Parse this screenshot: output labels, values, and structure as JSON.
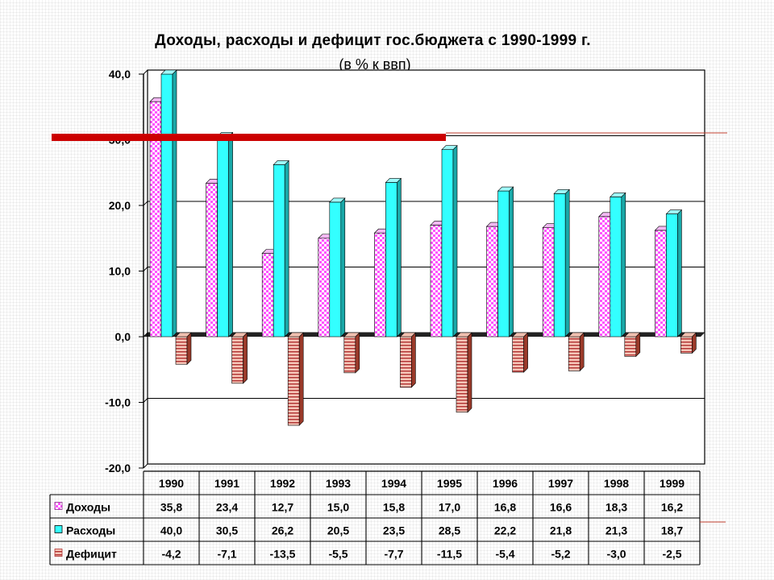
{
  "chart_data": {
    "type": "bar",
    "title": "Доходы, расходы и дефицит гос.бюджета с 1990-1999 г.",
    "subtitle": "(в % к ввп)",
    "categories": [
      "1990",
      "1991",
      "1992",
      "1993",
      "1994",
      "1995",
      "1996",
      "1997",
      "1998",
      "1999"
    ],
    "series": [
      {
        "name": "Доходы",
        "values": [
          35.8,
          23.4,
          12.7,
          15.0,
          15.8,
          17.0,
          16.8,
          16.6,
          18.3,
          16.2
        ],
        "labels": [
          "35,8",
          "23,4",
          "12,7",
          "15,0",
          "15,8",
          "17,0",
          "16,8",
          "16,6",
          "18,3",
          "16,2"
        ]
      },
      {
        "name": "Расходы",
        "values": [
          40.0,
          30.5,
          26.2,
          20.5,
          23.5,
          28.5,
          22.2,
          21.8,
          21.3,
          18.7
        ],
        "labels": [
          "40,0",
          "30,5",
          "26,2",
          "20,5",
          "23,5",
          "28,5",
          "22,2",
          "21,8",
          "21,3",
          "18,7"
        ]
      },
      {
        "name": "Дефицит",
        "values": [
          -4.2,
          -7.1,
          -13.5,
          -5.5,
          -7.7,
          -11.5,
          -5.4,
          -5.2,
          -3.0,
          -2.5
        ],
        "labels": [
          "-4,2",
          "-7,1",
          "-13,5",
          "-5,5",
          "-7,7",
          "-11,5",
          "-5,4",
          "-5,2",
          "-3,0",
          "-2,5"
        ]
      }
    ],
    "ylim": [
      -20,
      40
    ],
    "yticks": [
      -20,
      -10,
      0,
      10,
      20,
      30,
      40
    ],
    "ytick_labels": [
      "-20,0",
      "-10,0",
      "0,0",
      "10,0",
      "20,0",
      "30,0",
      "40,0"
    ],
    "grid": true,
    "legend": "data table below chart"
  },
  "colors": {
    "income_fill": "#ff66ff",
    "income_dark": "#8a2a8a",
    "expense_fill": "#33ffff",
    "expense_side": "#1aa8a8",
    "expense_top": "#9ffafa",
    "deficit_fill": "#f0a090",
    "deficit_line": "#b03030",
    "deficit_side": "#9b3a2a",
    "red_band": "#cc0000",
    "red_line": "#c04030"
  }
}
